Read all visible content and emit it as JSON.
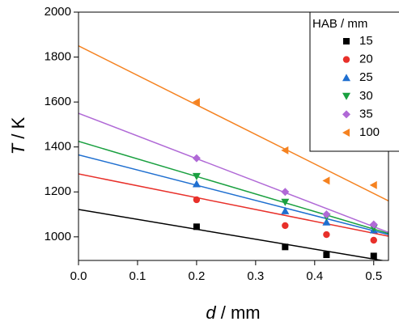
{
  "chart_data": {
    "type": "scatter",
    "x_label_symbol": "d",
    "x_label_unit": "/ mm",
    "y_label_symbol": "T",
    "y_label_unit": "/ K",
    "legend_title": "HAB / mm",
    "legend": "top-right",
    "xlim": [
      0,
      0.525
    ],
    "ylim": [
      895,
      2000
    ],
    "xticks": [
      {
        "value": 0,
        "label": "0.0"
      },
      0.1,
      0.2,
      0.3,
      0.4,
      0.5
    ],
    "yticks": [
      1000,
      1200,
      1400,
      1600,
      1800,
      2000
    ],
    "x": [
      0.2,
      0.35,
      0.42,
      0.5
    ],
    "series": [
      {
        "name": "15",
        "color": "#000000",
        "marker": "square",
        "values": [
          1045,
          955,
          920,
          915
        ],
        "fit": {
          "x": [
            0,
            0.525
          ],
          "y": [
            1122,
            890
          ]
        }
      },
      {
        "name": "20",
        "color": "#e8302a",
        "marker": "circle",
        "values": [
          1165,
          1050,
          1010,
          985
        ],
        "fit": {
          "x": [
            0,
            0.525
          ],
          "y": [
            1280,
            1003
          ]
        }
      },
      {
        "name": "25",
        "color": "#1f6fd0",
        "marker": "triangle-up",
        "values": [
          1235,
          1115,
          1065,
          1030
        ],
        "fit": {
          "x": [
            0,
            0.525
          ],
          "y": [
            1365,
            1010
          ]
        }
      },
      {
        "name": "30",
        "color": "#1aa040",
        "marker": "triangle-down",
        "values": [
          1270,
          1155,
          1090,
          1040
        ],
        "fit": {
          "x": [
            0,
            0.525
          ],
          "y": [
            1425,
            1015
          ]
        }
      },
      {
        "name": "35",
        "color": "#b069d6",
        "marker": "diamond",
        "values": [
          1350,
          1200,
          1100,
          1055
        ],
        "fit": {
          "x": [
            0,
            0.525
          ],
          "y": [
            1550,
            1020
          ]
        }
      },
      {
        "name": "100",
        "color": "#f58220",
        "marker": "triangle-left",
        "values": [
          1600,
          1385,
          1250,
          1230
        ],
        "fit": {
          "x": [
            0,
            0.525
          ],
          "y": [
            1850,
            1160
          ]
        }
      }
    ]
  }
}
